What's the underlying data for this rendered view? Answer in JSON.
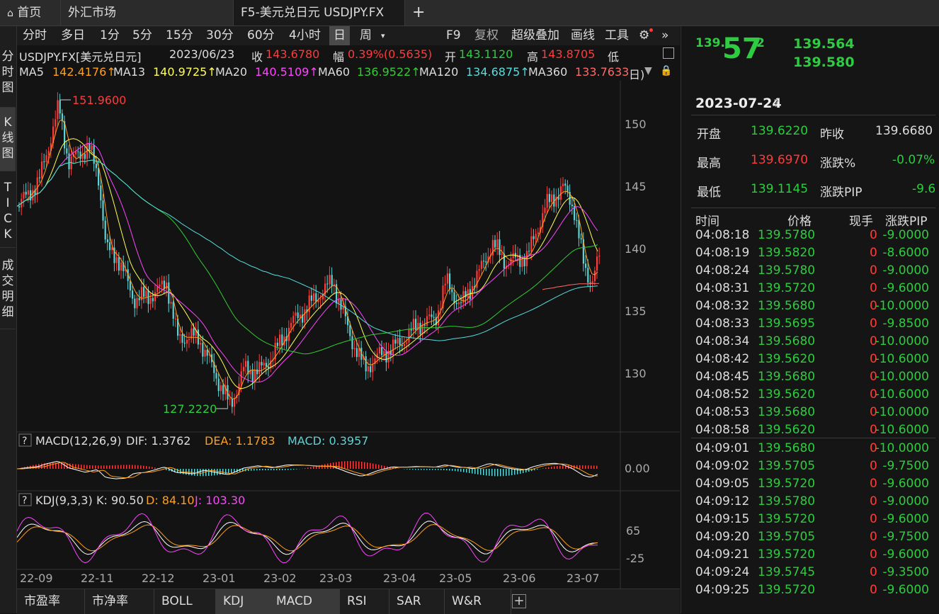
{
  "tabs": [
    {
      "label": "首页",
      "icon": "home-icon"
    },
    {
      "label": "外汇市场"
    },
    {
      "label": "F5-美元兑日元 USDJPY.FX",
      "active": true
    }
  ],
  "new_tab_icon": "+",
  "left_tabs": [
    "分时图",
    "K线图",
    "TICK",
    "成交明细"
  ],
  "toolbar": {
    "periods": [
      "分时",
      "多日",
      "1分",
      "5分",
      "15分",
      "30分",
      "60分",
      "4小时",
      "日",
      "周"
    ],
    "active_period": "日",
    "right_items": [
      "F9",
      "复权",
      "超级叠加",
      "画线",
      "工具"
    ]
  },
  "info_bar": {
    "symbol": "USDJPY.FX[美元兑日元]",
    "date": "2023/06/23",
    "close_label": "收",
    "close": "143.6780",
    "range_label": "幅",
    "range": "0.39%(0.5635)",
    "open_label": "开",
    "open": "143.1120",
    "high_label": "高",
    "high": "143.8705",
    "low_label": "低"
  },
  "ma_bar": [
    {
      "label": "MA5",
      "value": "142.4176↑",
      "color": "#ff9f1c"
    },
    {
      "label": "MA13",
      "value": "140.9725↑",
      "color": "#ffff55"
    },
    {
      "label": "MA20",
      "value": "140.5109↑",
      "color": "#ff44ff"
    },
    {
      "label": "MA60",
      "value": "136.9522↑",
      "color": "#33cc33"
    },
    {
      "label": "MA120",
      "value": "134.6875↑",
      "color": "#55dddd"
    },
    {
      "label": "MA360",
      "value": "133.7633↑",
      "color": "#ff6a6a"
    }
  ],
  "ma_tail": "日)",
  "price_chart": {
    "y_ticks": [
      "150",
      "145",
      "140",
      "135",
      "130"
    ],
    "max_label": "151.9600",
    "min_label": "127.2220"
  },
  "macd": {
    "help": "?",
    "title": "MACD(12,26,9)",
    "dif": "DIF: 1.3762",
    "dea": "DEA: 1.1783",
    "macd": "MACD: 0.3957",
    "y_tick": "0.00"
  },
  "kdj": {
    "help": "?",
    "title": "KDJ(9,3,3)",
    "k": "K: 90.50",
    "d": "D: 84.10",
    "j": "J: 103.30",
    "y_ticks": [
      "65",
      "-25"
    ]
  },
  "x_labels": [
    "22-09",
    "22-11",
    "22-12",
    "23-01",
    "23-02",
    "23-03",
    "23-04",
    "23-05",
    "23-06",
    "23-07"
  ],
  "bottom_tabs": [
    "市盈率",
    "市净率",
    "BOLL",
    "KDJ",
    "MACD",
    "RSI",
    "SAR",
    "W&R"
  ],
  "active_bottom_tab": "KDJ",
  "add_tab": "+",
  "quote": {
    "price_main": "139.",
    "price_big": "57",
    "price_sup": "2",
    "bid": "139.564",
    "ask": "139.580",
    "date": "2023-07-24",
    "date_help": "?"
  },
  "stats": {
    "open_label": "开盘",
    "open": "139.6220",
    "prev_label": "昨收",
    "prev": "139.6680",
    "high_label": "最高",
    "high": "139.6970",
    "pct_label": "涨跌%",
    "pct": "-0.07%",
    "low_label": "最低",
    "low": "139.1145",
    "pip_label": "涨跌PIP",
    "pip": "-9.6"
  },
  "tick_header": [
    "时间",
    "价格",
    "现手",
    "涨跌PIP"
  ],
  "ticks": [
    [
      "04:08:18",
      "139.5780",
      "0",
      "-9.0000"
    ],
    [
      "04:08:19",
      "139.5820",
      "0",
      "-8.6000"
    ],
    [
      "04:08:24",
      "139.5780",
      "0",
      "-9.0000"
    ],
    [
      "04:08:31",
      "139.5720",
      "0",
      "-9.6000"
    ],
    [
      "04:08:32",
      "139.5680",
      "0",
      "-10.0000"
    ],
    [
      "04:08:33",
      "139.5695",
      "0",
      "-9.8500"
    ],
    [
      "04:08:34",
      "139.5680",
      "0",
      "-10.0000"
    ],
    [
      "04:08:42",
      "139.5620",
      "0",
      "-10.6000"
    ],
    [
      "04:08:45",
      "139.5680",
      "0",
      "-10.0000"
    ],
    [
      "04:08:52",
      "139.5620",
      "0",
      "-10.6000"
    ],
    [
      "04:08:53",
      "139.5680",
      "0",
      "-10.0000"
    ],
    [
      "04:08:58",
      "139.5620",
      "0",
      "-10.6000"
    ],
    [
      "04:09:01",
      "139.5680",
      "0",
      "-10.0000"
    ],
    [
      "04:09:02",
      "139.5705",
      "0",
      "-9.7500"
    ],
    [
      "04:09:05",
      "139.5720",
      "0",
      "-9.6000"
    ],
    [
      "04:09:12",
      "139.5780",
      "0",
      "-9.0000"
    ],
    [
      "04:09:15",
      "139.5720",
      "0",
      "-9.6000"
    ],
    [
      "04:09:20",
      "139.5705",
      "0",
      "-9.7500"
    ],
    [
      "04:09:21",
      "139.5720",
      "0",
      "-9.6000"
    ],
    [
      "04:09:24",
      "139.5745",
      "0",
      "-9.3500"
    ],
    [
      "04:09:25",
      "139.5720",
      "0",
      "-9.6000"
    ]
  ],
  "colors": {
    "up": "#ff3b3b",
    "down": "#2ecc40",
    "teal": "#5fd3d3",
    "orange": "#ff9f1c"
  }
}
